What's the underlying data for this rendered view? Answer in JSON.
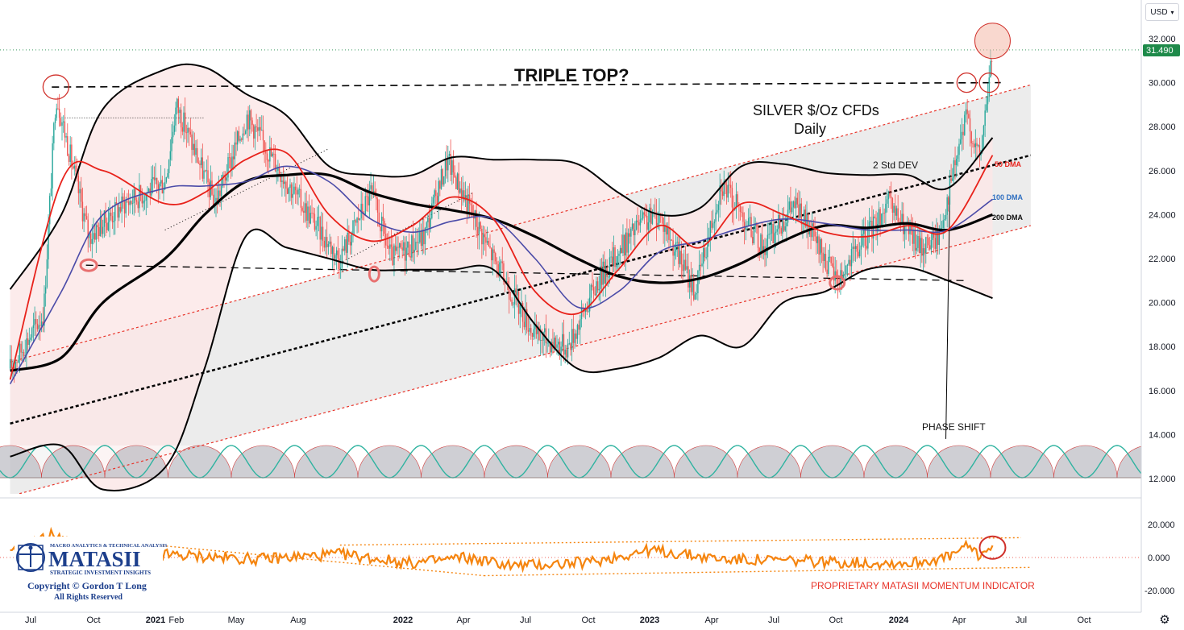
{
  "currency_button": "USD",
  "settings_icon": "gear-icon",
  "price_axis_ticks": [
    "32.000",
    "30.000",
    "28.000",
    "26.000",
    "24.000",
    "22.000",
    "20.000",
    "18.000",
    "16.000",
    "14.000",
    "12.000"
  ],
  "last_price_label": "31.490",
  "momentum_axis_ticks": [
    "20.000",
    "0.000",
    "-20.000"
  ],
  "time_axis_labels": [
    "Jul",
    "Oct",
    "2021",
    "Feb",
    "May",
    "Aug",
    "2022",
    "Apr",
    "Jul",
    "Oct",
    "2023",
    "Apr",
    "Jul",
    "Oct",
    "2024",
    "Apr",
    "Jul",
    "Oct"
  ],
  "annotations": {
    "triple_top": "TRIPLE TOP?",
    "title_line1": "SILVER $/Oz CFDs",
    "title_line2": "Daily",
    "std_dev": "2 Std DEV",
    "dma50": "50 DMA",
    "dma100": "100 DMA",
    "dma200": "200 DMA",
    "phase_shift": "PHASE SHIFT",
    "indicator_label": "PROPRIETARY MATASII MOMENTUM INDICATOR"
  },
  "logo": {
    "top_line": "MACRO ANALYTICS & TECHNICAL ANALYSIS",
    "name": "MATASII",
    "tagline": "STRATEGIC INVESTMENT INSIGHTS",
    "copyright": "Copyright © Gordon T Long",
    "rights": "All Rights Reserved"
  },
  "colors": {
    "price": "#26a69a",
    "dma50": "#e8221b",
    "dma100": "#4b4ba8",
    "dma200": "#000000",
    "momentum": "#f5850f",
    "channel": "#e8342a",
    "band_fill": "#fbe7e7",
    "channel_fill": "#ececec",
    "last_price_bg": "#1e8a4a"
  },
  "chart_data": [
    {
      "type": "line",
      "title": "SILVER $/Oz CFDs Daily",
      "ylim": [
        12,
        32.5
      ],
      "x_start": "2020-06-01",
      "x_end": "2025-01-31",
      "x_label_dates": [
        "2020-07-01",
        "2020-10-01",
        "2021-01-01",
        "2021-02-01",
        "2021-05-01",
        "2021-08-01",
        "2022-01-01",
        "2022-04-01",
        "2022-07-01",
        "2022-10-01",
        "2023-01-01",
        "2023-04-01",
        "2023-07-01",
        "2023-10-01",
        "2024-01-01",
        "2024-04-01",
        "2024-07-01",
        "2024-10-01"
      ],
      "last_price": 31.49,
      "series": [
        {
          "name": "Price",
          "x": [
            "2020-06-01",
            "2020-07-20",
            "2020-08-07",
            "2020-09-24",
            "2020-11-15",
            "2021-01-15",
            "2021-02-01",
            "2021-03-31",
            "2021-05-17",
            "2021-07-15",
            "2021-09-30",
            "2021-11-15",
            "2021-12-15",
            "2022-02-01",
            "2022-03-08",
            "2022-05-15",
            "2022-07-15",
            "2022-09-01",
            "2022-10-15",
            "2022-12-15",
            "2023-01-15",
            "2023-03-08",
            "2023-04-15",
            "2023-06-15",
            "2023-08-01",
            "2023-10-03",
            "2023-11-15",
            "2023-12-15",
            "2024-02-01",
            "2024-03-01",
            "2024-04-12",
            "2024-05-01",
            "2024-05-20"
          ],
          "values": [
            17.0,
            19.5,
            29.5,
            23.0,
            24.5,
            25.5,
            29.0,
            24.5,
            28.5,
            25.5,
            22.0,
            25.0,
            22.0,
            23.0,
            26.5,
            22.0,
            18.5,
            18.0,
            21.0,
            23.5,
            24.0,
            20.5,
            25.5,
            22.5,
            24.5,
            21.0,
            23.0,
            24.5,
            22.5,
            23.0,
            28.5,
            26.5,
            31.5
          ]
        },
        {
          "name": "50 DMA",
          "x": [
            "2020-06-01",
            "2020-08-15",
            "2020-10-15",
            "2021-01-15",
            "2021-03-15",
            "2021-05-15",
            "2021-07-15",
            "2021-09-15",
            "2021-11-15",
            "2022-01-15",
            "2022-03-15",
            "2022-05-15",
            "2022-07-15",
            "2022-09-15",
            "2022-11-15",
            "2023-01-15",
            "2023-03-15",
            "2023-05-15",
            "2023-07-15",
            "2023-09-15",
            "2023-11-15",
            "2024-01-15",
            "2024-03-15",
            "2024-05-20"
          ],
          "values": [
            16.5,
            25.5,
            26.0,
            24.5,
            25.0,
            26.5,
            26.8,
            24.0,
            22.8,
            23.5,
            24.8,
            23.8,
            20.5,
            19.5,
            21.5,
            23.5,
            22.5,
            24.5,
            24.0,
            23.2,
            23.0,
            23.5,
            23.3,
            26.7
          ]
        },
        {
          "name": "100 DMA",
          "x": [
            "2020-06-01",
            "2020-08-15",
            "2020-10-15",
            "2021-01-15",
            "2021-03-15",
            "2021-05-15",
            "2021-07-15",
            "2021-09-15",
            "2021-11-15",
            "2022-01-15",
            "2022-03-15",
            "2022-05-15",
            "2022-07-15",
            "2022-09-15",
            "2022-11-15",
            "2023-01-15",
            "2023-03-15",
            "2023-05-15",
            "2023-07-15",
            "2023-09-15",
            "2023-11-15",
            "2024-01-15",
            "2024-03-15",
            "2024-05-20"
          ],
          "values": [
            16.3,
            20.5,
            24.0,
            25.2,
            25.3,
            25.5,
            26.2,
            25.5,
            23.8,
            23.2,
            23.7,
            23.8,
            22.0,
            19.8,
            20.5,
            22.3,
            22.8,
            23.4,
            23.8,
            23.6,
            23.3,
            23.3,
            23.3,
            24.7
          ]
        },
        {
          "name": "200 DMA",
          "x": [
            "2020-06-01",
            "2020-08-15",
            "2020-10-15",
            "2021-01-15",
            "2021-03-15",
            "2021-05-15",
            "2021-07-15",
            "2021-09-15",
            "2021-11-15",
            "2022-01-15",
            "2022-03-15",
            "2022-05-15",
            "2022-07-15",
            "2022-09-15",
            "2022-11-15",
            "2023-01-15",
            "2023-03-15",
            "2023-05-15",
            "2023-07-15",
            "2023-09-15",
            "2023-11-15",
            "2024-01-15",
            "2024-03-15",
            "2024-05-20"
          ],
          "values": [
            16.9,
            17.5,
            20.0,
            22.0,
            24.0,
            25.5,
            25.8,
            25.8,
            25.0,
            24.5,
            24.2,
            23.8,
            23.0,
            22.0,
            21.2,
            20.9,
            21.1,
            21.8,
            22.8,
            23.5,
            23.4,
            23.6,
            23.3,
            24.0
          ]
        },
        {
          "name": "2 Std DEV",
          "x": [
            "2020-06-01",
            "2020-08-15",
            "2020-10-15",
            "2021-01-15",
            "2021-03-15",
            "2021-05-15",
            "2021-07-15",
            "2021-09-15",
            "2021-11-15",
            "2022-01-15",
            "2022-03-15",
            "2022-05-15",
            "2022-07-15",
            "2022-09-15",
            "2022-11-15",
            "2023-01-15",
            "2023-03-15",
            "2023-05-15",
            "2023-07-15",
            "2023-09-15",
            "2023-11-15",
            "2024-01-15",
            "2024-03-15",
            "2024-05-20"
          ],
          "values": [
            20.6,
            24.0,
            28.8,
            30.6,
            30.7,
            29.5,
            28.5,
            26.2,
            25.8,
            25.8,
            26.6,
            26.5,
            26.5,
            26.3,
            25.0,
            24.0,
            24.3,
            26.2,
            26.3,
            25.9,
            25.8,
            25.8,
            25.2,
            27.5
          ]
        },
        {
          "name": "2 Std DEV lower",
          "x": [
            "2020-06-01",
            "2020-08-15",
            "2020-10-15",
            "2021-01-15",
            "2021-03-15",
            "2021-05-15",
            "2021-07-15",
            "2021-09-15",
            "2021-11-15",
            "2022-01-15",
            "2022-03-15",
            "2022-05-15",
            "2022-07-15",
            "2022-09-15",
            "2022-11-15",
            "2023-01-15",
            "2023-03-15",
            "2023-05-15",
            "2023-07-15",
            "2023-09-15",
            "2023-11-15",
            "2024-01-15",
            "2024-03-15",
            "2024-05-20"
          ],
          "values": [
            13.0,
            13.5,
            11.5,
            12.5,
            17.0,
            23.0,
            22.5,
            22.0,
            21.5,
            21.5,
            21.5,
            21.5,
            19.0,
            17.0,
            17.0,
            17.5,
            18.5,
            18.0,
            20.0,
            20.5,
            21.5,
            21.6,
            21.0,
            20.2
          ]
        }
      ],
      "lines": [
        {
          "name": "upper dashed",
          "x": [
            "2020-08-01",
            "2024-06-01"
          ],
          "values": [
            29.8,
            30.0
          ]
        },
        {
          "name": "lower dashed",
          "x": [
            "2020-09-20",
            "2024-04-10"
          ],
          "values": [
            21.7,
            21.0
          ]
        },
        {
          "name": "mid trend",
          "x": [
            "2020-06-01",
            "2024-07-15"
          ],
          "values": [
            14.5,
            26.7
          ]
        },
        {
          "name": "channel top",
          "x": [
            "2020-06-01",
            "2024-07-15"
          ],
          "values": [
            17.3,
            29.9
          ]
        },
        {
          "name": "channel bottom",
          "x": [
            "2020-06-01",
            "2024-07-15"
          ],
          "values": [
            11.2,
            23.5
          ]
        }
      ]
    },
    {
      "type": "line",
      "title": "PROPRIETARY MATASII MOMENTUM INDICATOR",
      "ylim": [
        -25,
        15
      ],
      "series": [
        {
          "name": "Momentum",
          "x": [
            "2020-06-01",
            "2020-08-07",
            "2020-08-25",
            "2021-01-01",
            "2021-06-01",
            "2021-10-01",
            "2022-01-15",
            "2022-04-01",
            "2022-06-15",
            "2022-10-01",
            "2023-01-01",
            "2023-04-15",
            "2023-08-01",
            "2023-10-15",
            "2024-01-15",
            "2024-03-15",
            "2024-04-15",
            "2024-05-01",
            "2024-05-20"
          ],
          "values": [
            2.0,
            15.0,
            3.0,
            2.0,
            -1.0,
            2.0,
            -3.5,
            0.0,
            -5.0,
            -3.0,
            4.5,
            -1.0,
            -2.0,
            -3.0,
            -3.5,
            0.0,
            7.0,
            1.0,
            7.5
          ]
        }
      ]
    }
  ]
}
